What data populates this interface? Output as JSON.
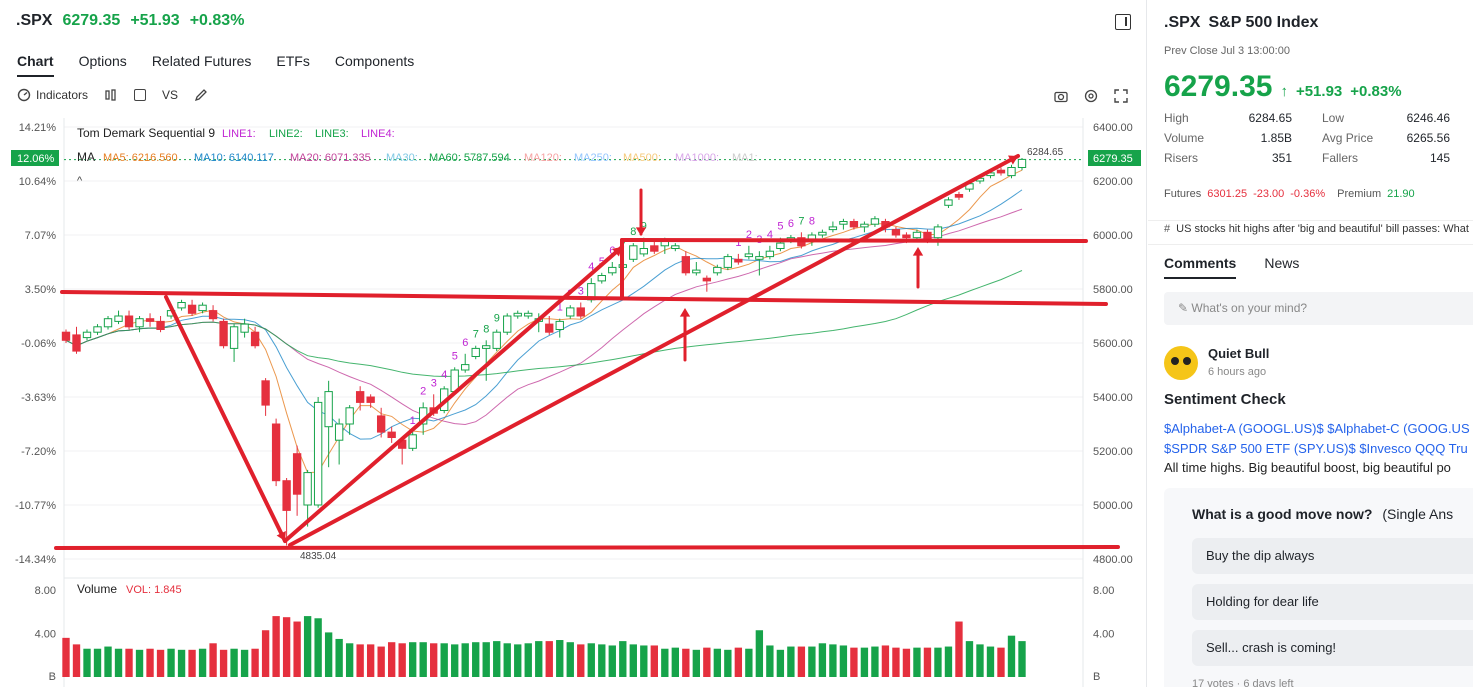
{
  "header": {
    "symbol": ".SPX",
    "price": "6279.35",
    "change": "+51.93",
    "change_pct": "+0.83%"
  },
  "tabs": [
    "Chart",
    "Options",
    "Related Futures",
    "ETFs",
    "Components"
  ],
  "toolbar": {
    "indicators": "Indicators",
    "vs": "VS"
  },
  "chart": {
    "indicator_title": "Tom Demark Sequential 9",
    "line_labels": [
      "LINE1:",
      "LINE2:",
      "LINE3:",
      "LINE4:"
    ],
    "ma_label": "MA",
    "ma_items": [
      "MA5: 6216.560",
      "MA10: 6140.117",
      "MA20: 6071.335",
      "MA30:",
      "MA60: 5787.594",
      "MA120:",
      "MA250:",
      "MA500:",
      "MA1000:",
      "MA1:"
    ],
    "left_ticks": [
      "14.21%",
      "10.64%",
      "7.07%",
      "3.50%",
      "-0.06%",
      "-3.63%",
      "-7.20%",
      "-10.77%",
      "-14.34%"
    ],
    "right_ticks": [
      "6400.00",
      "6200.00",
      "6000.00",
      "5800.00",
      "5600.00",
      "5400.00",
      "5200.00",
      "5000.00",
      "4800.00"
    ],
    "current_pct_tag": "12.06%",
    "current_price_tag": "6279.35",
    "high_label": "6284.65",
    "low_label": "4835.04",
    "td_seq_labels": [
      "1",
      "2",
      "3",
      "4",
      "5",
      "6",
      "7",
      "8",
      "9",
      "1",
      "2",
      "3",
      "4",
      "5",
      "6",
      "7",
      "8",
      "9",
      "1",
      "2",
      "3",
      "4",
      "5",
      "6",
      "7",
      "8"
    ],
    "volume_title": "Volume",
    "volume_value": "VOL: 1.845",
    "volume_ticks": [
      "8.00",
      "4.00",
      "B"
    ]
  },
  "chart_data": {
    "type": "candlestick",
    "ylim": [
      4800,
      6400
    ],
    "volume_ylim": [
      0,
      8
    ],
    "candles": [
      {
        "o": 5640,
        "c": 5610,
        "h": 5650,
        "l": 5600
      },
      {
        "o": 5630,
        "c": 5570,
        "h": 5660,
        "l": 5560
      },
      {
        "o": 5620,
        "c": 5640,
        "h": 5650,
        "l": 5610
      },
      {
        "o": 5640,
        "c": 5660,
        "h": 5670,
        "l": 5630
      },
      {
        "o": 5660,
        "c": 5690,
        "h": 5700,
        "l": 5650
      },
      {
        "o": 5680,
        "c": 5700,
        "h": 5720,
        "l": 5670
      },
      {
        "o": 5700,
        "c": 5660,
        "h": 5720,
        "l": 5650
      },
      {
        "o": 5660,
        "c": 5690,
        "h": 5700,
        "l": 5640
      },
      {
        "o": 5690,
        "c": 5680,
        "h": 5710,
        "l": 5660
      },
      {
        "o": 5680,
        "c": 5650,
        "h": 5700,
        "l": 5640
      },
      {
        "o": 5700,
        "c": 5720,
        "h": 5740,
        "l": 5690
      },
      {
        "o": 5730,
        "c": 5750,
        "h": 5760,
        "l": 5720
      },
      {
        "o": 5740,
        "c": 5710,
        "h": 5760,
        "l": 5700
      },
      {
        "o": 5720,
        "c": 5740,
        "h": 5750,
        "l": 5710
      },
      {
        "o": 5720,
        "c": 5690,
        "h": 5740,
        "l": 5680
      },
      {
        "o": 5680,
        "c": 5590,
        "h": 5690,
        "l": 5580
      },
      {
        "o": 5580,
        "c": 5660,
        "h": 5670,
        "l": 5530
      },
      {
        "o": 5640,
        "c": 5670,
        "h": 5690,
        "l": 5620
      },
      {
        "o": 5640,
        "c": 5590,
        "h": 5660,
        "l": 5580
      },
      {
        "o": 5460,
        "c": 5370,
        "h": 5470,
        "l": 5330
      },
      {
        "o": 5300,
        "c": 5090,
        "h": 5320,
        "l": 5070
      },
      {
        "o": 5090,
        "c": 4980,
        "h": 5100,
        "l": 4850
      },
      {
        "o": 5190,
        "c": 5040,
        "h": 5220,
        "l": 4960
      },
      {
        "o": 5000,
        "c": 5120,
        "h": 5130,
        "l": 4920
      },
      {
        "o": 5000,
        "c": 5380,
        "h": 5400,
        "l": 4990
      },
      {
        "o": 5290,
        "c": 5420,
        "h": 5460,
        "l": 5140
      },
      {
        "o": 5240,
        "c": 5300,
        "h": 5320,
        "l": 5150
      },
      {
        "o": 5300,
        "c": 5360,
        "h": 5370,
        "l": 5260
      },
      {
        "o": 5420,
        "c": 5380,
        "h": 5440,
        "l": 5350
      },
      {
        "o": 5400,
        "c": 5380,
        "h": 5410,
        "l": 5360
      },
      {
        "o": 5330,
        "c": 5270,
        "h": 5360,
        "l": 5250
      },
      {
        "o": 5270,
        "c": 5250,
        "h": 5290,
        "l": 5230
      },
      {
        "o": 5240,
        "c": 5210,
        "h": 5250,
        "l": 5150
      },
      {
        "o": 5210,
        "c": 5260,
        "h": 5270,
        "l": 5200
      },
      {
        "o": 5300,
        "c": 5360,
        "h": 5380,
        "l": 5260
      },
      {
        "o": 5360,
        "c": 5340,
        "h": 5410,
        "l": 5330
      },
      {
        "o": 5350,
        "c": 5430,
        "h": 5440,
        "l": 5340
      },
      {
        "o": 5420,
        "c": 5500,
        "h": 5510,
        "l": 5410
      },
      {
        "o": 5500,
        "c": 5520,
        "h": 5560,
        "l": 5490
      },
      {
        "o": 5550,
        "c": 5580,
        "h": 5590,
        "l": 5540
      },
      {
        "o": 5580,
        "c": 5590,
        "h": 5610,
        "l": 5460
      },
      {
        "o": 5580,
        "c": 5640,
        "h": 5650,
        "l": 5570
      },
      {
        "o": 5640,
        "c": 5700,
        "h": 5710,
        "l": 5630
      },
      {
        "o": 5700,
        "c": 5710,
        "h": 5720,
        "l": 5690
      },
      {
        "o": 5700,
        "c": 5710,
        "h": 5720,
        "l": 5690
      },
      {
        "o": 5680,
        "c": 5690,
        "h": 5710,
        "l": 5640
      },
      {
        "o": 5670,
        "c": 5640,
        "h": 5700,
        "l": 5630
      },
      {
        "o": 5650,
        "c": 5680,
        "h": 5690,
        "l": 5620
      },
      {
        "o": 5700,
        "c": 5730,
        "h": 5740,
        "l": 5690
      },
      {
        "o": 5730,
        "c": 5700,
        "h": 5750,
        "l": 5690
      },
      {
        "o": 5760,
        "c": 5820,
        "h": 5840,
        "l": 5750
      },
      {
        "o": 5830,
        "c": 5850,
        "h": 5860,
        "l": 5820
      },
      {
        "o": 5860,
        "c": 5880,
        "h": 5900,
        "l": 5850
      },
      {
        "o": 5880,
        "c": 5890,
        "h": 5920,
        "l": 5870
      },
      {
        "o": 5910,
        "c": 5960,
        "h": 5970,
        "l": 5900
      },
      {
        "o": 5930,
        "c": 5950,
        "h": 5990,
        "l": 5920
      },
      {
        "o": 5960,
        "c": 5940,
        "h": 5980,
        "l": 5930
      },
      {
        "o": 5960,
        "c": 5980,
        "h": 5990,
        "l": 5930
      },
      {
        "o": 5950,
        "c": 5960,
        "h": 5970,
        "l": 5940
      },
      {
        "o": 5920,
        "c": 5860,
        "h": 5940,
        "l": 5850
      },
      {
        "o": 5860,
        "c": 5870,
        "h": 5900,
        "l": 5850
      },
      {
        "o": 5840,
        "c": 5830,
        "h": 5850,
        "l": 5790
      },
      {
        "o": 5860,
        "c": 5880,
        "h": 5890,
        "l": 5850
      },
      {
        "o": 5880,
        "c": 5920,
        "h": 5930,
        "l": 5870
      },
      {
        "o": 5910,
        "c": 5900,
        "h": 5930,
        "l": 5890
      },
      {
        "o": 5920,
        "c": 5930,
        "h": 5960,
        "l": 5910
      },
      {
        "o": 5910,
        "c": 5920,
        "h": 5940,
        "l": 5850
      },
      {
        "o": 5920,
        "c": 5940,
        "h": 5960,
        "l": 5910
      },
      {
        "o": 5950,
        "c": 5970,
        "h": 5990,
        "l": 5940
      },
      {
        "o": 5980,
        "c": 5990,
        "h": 6000,
        "l": 5970
      },
      {
        "o": 5990,
        "c": 5960,
        "h": 6010,
        "l": 5950
      },
      {
        "o": 5980,
        "c": 6000,
        "h": 6010,
        "l": 5960
      },
      {
        "o": 6000,
        "c": 6010,
        "h": 6020,
        "l": 5990
      },
      {
        "o": 6020,
        "c": 6030,
        "h": 6050,
        "l": 6010
      },
      {
        "o": 6040,
        "c": 6050,
        "h": 6060,
        "l": 6020
      },
      {
        "o": 6050,
        "c": 6030,
        "h": 6060,
        "l": 6020
      },
      {
        "o": 6030,
        "c": 6040,
        "h": 6050,
        "l": 6010
      },
      {
        "o": 6040,
        "c": 6060,
        "h": 6070,
        "l": 6030
      },
      {
        "o": 6050,
        "c": 6030,
        "h": 6060,
        "l": 6010
      },
      {
        "o": 6020,
        "c": 6000,
        "h": 6030,
        "l": 5990
      },
      {
        "o": 6000,
        "c": 5990,
        "h": 6010,
        "l": 5970
      },
      {
        "o": 5990,
        "c": 6010,
        "h": 6020,
        "l": 5980
      },
      {
        "o": 6010,
        "c": 5980,
        "h": 6020,
        "l": 5970
      },
      {
        "o": 5990,
        "c": 6030,
        "h": 6040,
        "l": 5960
      },
      {
        "o": 6110,
        "c": 6130,
        "h": 6140,
        "l": 6100
      },
      {
        "o": 6150,
        "c": 6140,
        "h": 6160,
        "l": 6130
      },
      {
        "o": 6170,
        "c": 6190,
        "h": 6200,
        "l": 6160
      },
      {
        "o": 6200,
        "c": 6210,
        "h": 6220,
        "l": 6190
      },
      {
        "o": 6220,
        "c": 6230,
        "h": 6240,
        "l": 6210
      },
      {
        "o": 6240,
        "c": 6230,
        "h": 6250,
        "l": 6220
      },
      {
        "o": 6220,
        "c": 6250,
        "h": 6260,
        "l": 6210
      },
      {
        "o": 6250,
        "c": 6280,
        "h": 6285,
        "l": 6240
      }
    ],
    "volume": [
      3.6,
      3.0,
      2.6,
      2.6,
      2.8,
      2.6,
      2.6,
      2.5,
      2.6,
      2.5,
      2.6,
      2.5,
      2.5,
      2.6,
      3.1,
      2.5,
      2.6,
      2.5,
      2.6,
      4.3,
      5.6,
      5.5,
      5.1,
      5.6,
      5.4,
      4.1,
      3.5,
      3.1,
      3.0,
      3.0,
      2.8,
      3.2,
      3.1,
      3.2,
      3.2,
      3.1,
      3.1,
      3.0,
      3.1,
      3.2,
      3.2,
      3.3,
      3.1,
      3.0,
      3.1,
      3.3,
      3.3,
      3.4,
      3.2,
      3.0,
      3.1,
      3.0,
      2.9,
      3.3,
      3.0,
      2.9,
      2.9,
      2.6,
      2.7,
      2.6,
      2.5,
      2.7,
      2.6,
      2.5,
      2.7,
      2.6,
      4.3,
      2.9,
      2.5,
      2.8,
      2.8,
      2.8,
      3.1,
      3.0,
      2.9,
      2.7,
      2.7,
      2.8,
      2.9,
      2.7,
      2.6,
      2.7,
      2.7,
      2.7,
      2.8,
      5.1,
      3.3,
      3.0,
      2.8,
      2.7,
      3.8,
      3.3,
      3.3,
      3.0,
      1.8
    ]
  },
  "panel": {
    "symbol": ".SPX",
    "name": "S&P 500 Index",
    "prev_close": "Prev Close Jul 3 13:00:00",
    "price": "6279.35",
    "arrow": "↑",
    "change": "+51.93",
    "change_pct": "+0.83%",
    "stats": [
      {
        "label": "High",
        "value": "6284.65",
        "label2": "Low",
        "value2": "6246.46"
      },
      {
        "label": "Volume",
        "value": "1.85B",
        "label2": "Avg Price",
        "value2": "6265.56"
      },
      {
        "label": "Risers",
        "value": "351",
        "label2": "Fallers",
        "value2": "145"
      }
    ],
    "futures_label": "Futures",
    "futures_price": "6301.25",
    "futures_chg": "-23.00",
    "futures_pct": "-0.36%",
    "premium_label": "Premium",
    "premium_value": "21.90",
    "news_headline": "US stocks hit highs after 'big and beautiful' bill passes: What",
    "comment_tabs": [
      "Comments",
      "News"
    ],
    "composer_placeholder": "What's on your mind?",
    "post": {
      "user": "Quiet Bull",
      "time": "6 hours ago",
      "title": "Sentiment Check",
      "tickers_line1": "$Alphabet-A (GOOGL.US)$  $Alphabet-C (GOOG.US",
      "tickers_line2": "$SPDR S&P 500 ETF (SPY.US)$  $Invesco QQQ Tru",
      "body": "All time highs. Big beautiful boost, big beautiful po"
    },
    "poll": {
      "question": "What is a good move now?",
      "type": "(Single Ans",
      "options": [
        "Buy the dip always",
        "Holding for dear life",
        "Sell... crash is coming!"
      ],
      "votes": "17 votes · 6 days left"
    }
  },
  "colors": {
    "up": "#16a34a",
    "down": "#e5303e",
    "annotation": "#e0202c"
  }
}
